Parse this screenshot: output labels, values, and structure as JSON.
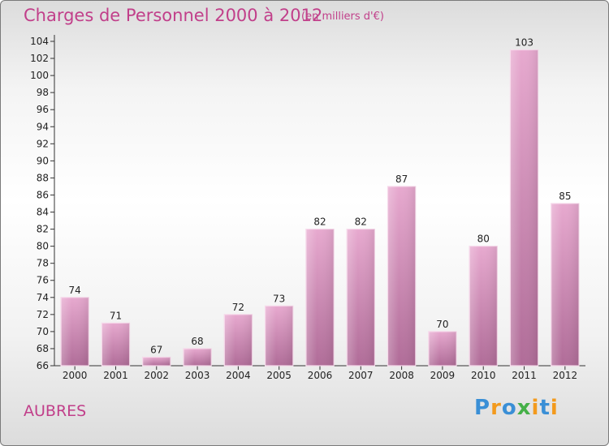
{
  "chart_data": {
    "type": "bar",
    "title": "Charges de Personnel 2000 à 2012",
    "subtitle": "(en milliers d'€)",
    "categories": [
      "2000",
      "2001",
      "2002",
      "2003",
      "2004",
      "2005",
      "2006",
      "2007",
      "2008",
      "2009",
      "2010",
      "2011",
      "2012"
    ],
    "values": [
      74,
      71,
      67,
      68,
      72,
      73,
      82,
      82,
      87,
      70,
      80,
      103,
      85
    ],
    "ylim": [
      66,
      104
    ],
    "yticks": [
      66,
      68,
      70,
      72,
      74,
      76,
      78,
      80,
      82,
      84,
      86,
      88,
      90,
      92,
      94,
      96,
      98,
      100,
      102,
      104
    ],
    "grid": false,
    "bar_color": "#d98fbd"
  },
  "place_name": "AUBRES",
  "logo_text": "Proxiti"
}
